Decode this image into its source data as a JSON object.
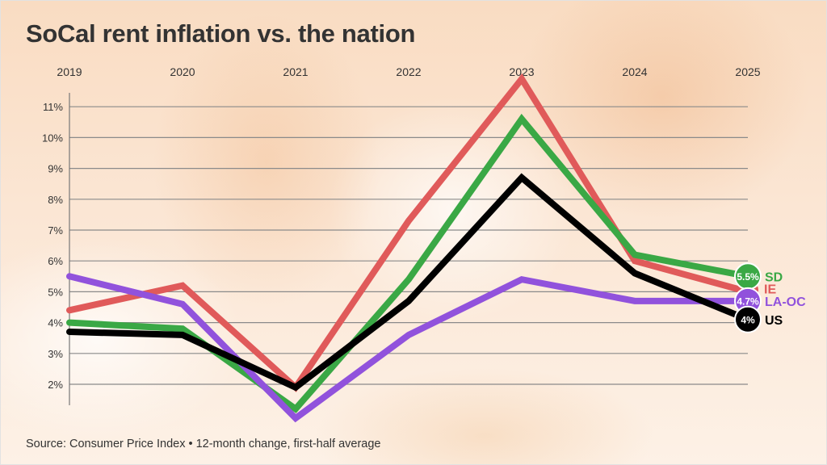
{
  "header": {
    "title": "SoCal rent inflation vs. the nation"
  },
  "footer": {
    "source": "Source: Consumer Price Index • 12-month change, first-half average"
  },
  "chart_data": {
    "type": "line",
    "title": "SoCal rent inflation vs. the nation",
    "xlabel": "",
    "ylabel": "",
    "x": [
      "2019",
      "2020",
      "2021",
      "2022",
      "2023",
      "2024",
      "2025"
    ],
    "x_tick_labels": [
      "2019",
      "2020",
      "2021",
      "2022",
      "2023",
      "2024",
      "2025"
    ],
    "x_axis_position": "top",
    "y_ticks": [
      2,
      3,
      4,
      5,
      6,
      7,
      8,
      9,
      10,
      11
    ],
    "y_tick_labels": [
      "2%",
      "3%",
      "4%",
      "5%",
      "6%",
      "7%",
      "8%",
      "9%",
      "10%",
      "11%"
    ],
    "ylim": [
      1.3,
      12.3
    ],
    "grid": true,
    "legend": "direct labels at right end of lines",
    "series": [
      {
        "name": "IE",
        "color": "#e05a5a",
        "values": [
          4.4,
          5.2,
          1.9,
          7.3,
          11.9,
          6.0,
          5.0
        ],
        "end_label": "",
        "badge_value": ""
      },
      {
        "name": "SD",
        "color": "#3aa845",
        "values": [
          4.0,
          3.8,
          1.2,
          5.4,
          10.6,
          6.2,
          5.5
        ],
        "end_label": "SD",
        "badge_value": "5.5%"
      },
      {
        "name": "LA-OC",
        "color": "#9152dc",
        "values": [
          5.5,
          4.6,
          0.9,
          3.6,
          5.4,
          4.7,
          4.7
        ],
        "end_label": "LA-OC",
        "badge_value": "4.7%"
      },
      {
        "name": "US",
        "color": "#000000",
        "values": [
          3.7,
          3.6,
          1.9,
          4.7,
          8.7,
          5.6,
          4.1
        ],
        "end_label": "US",
        "badge_value": "4%"
      }
    ],
    "ie_end_label": "IE"
  }
}
